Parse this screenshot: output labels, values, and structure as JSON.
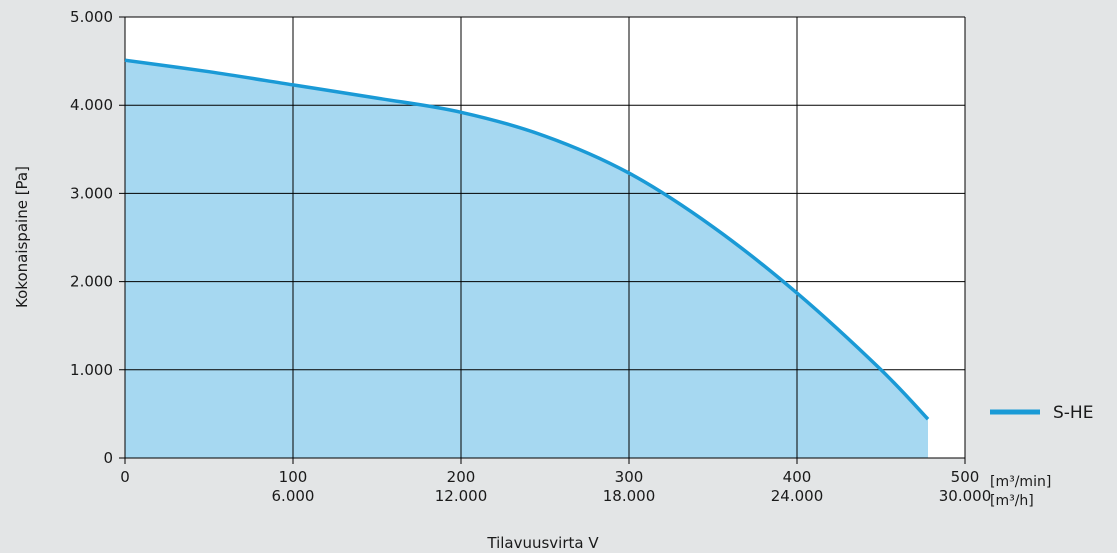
{
  "chart_data": {
    "type": "area",
    "ylabel": "Kokonaispaine [Pa]",
    "xlabel": "Tilavuusvirta V",
    "xlim": [
      0,
      500
    ],
    "ylim": [
      0,
      5000
    ],
    "grid": true,
    "legend_position": "right",
    "x_ticks": [
      {
        "primary": "0",
        "secondary": ""
      },
      {
        "primary": "100",
        "secondary": "6.000"
      },
      {
        "primary": "200",
        "secondary": "12.000"
      },
      {
        "primary": "300",
        "secondary": "18.000"
      },
      {
        "primary": "400",
        "secondary": "24.000"
      },
      {
        "primary": "500",
        "secondary": "30.000"
      }
    ],
    "x_tick_values": [
      0,
      100,
      200,
      300,
      400,
      500
    ],
    "x_units": [
      "[m³/min]",
      "[m³/h]"
    ],
    "y_ticks": [
      "0",
      "1.000",
      "2.000",
      "3.000",
      "4.000",
      "5.000"
    ],
    "y_tick_values": [
      0,
      1000,
      2000,
      3000,
      4000,
      5000
    ],
    "series": [
      {
        "name": "S-HE",
        "x": [
          0,
          50,
          100,
          150,
          200,
          250,
          300,
          350,
          400,
          450,
          478
        ],
        "y": [
          4510,
          4380,
          4230,
          4080,
          3920,
          3650,
          3230,
          2620,
          1870,
          1000,
          440
        ]
      }
    ],
    "colors": {
      "line": "#1a9ad6",
      "fill": "#a6d8f1",
      "grid": "#000000"
    }
  }
}
